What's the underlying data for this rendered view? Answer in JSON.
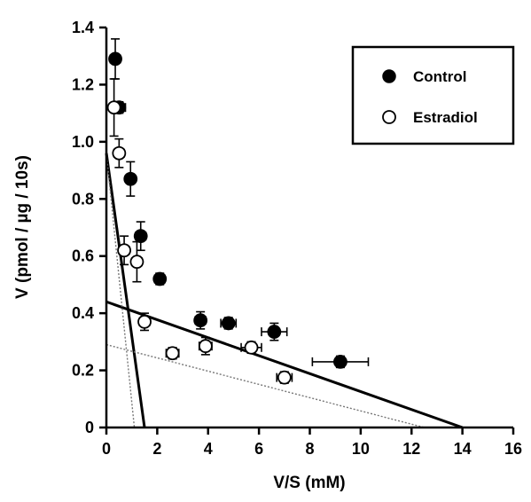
{
  "chart_data": {
    "type": "scatter",
    "title": "",
    "xlabel": "V/S (mM)",
    "ylabel": "V (pmol / µg / 10s)",
    "xlim": [
      0,
      16
    ],
    "ylim": [
      0,
      1.4
    ],
    "x_ticks": [
      0,
      2,
      4,
      6,
      8,
      10,
      12,
      14,
      16
    ],
    "y_ticks": [
      0,
      0.2,
      0.4,
      0.6,
      0.8,
      1.0,
      1.2,
      1.4
    ],
    "x_tick_labels": [
      "0",
      "2",
      "4",
      "6",
      "8",
      "10",
      "12",
      "14",
      "16"
    ],
    "y_tick_labels": [
      "0",
      "0.2",
      "0.4",
      "0.6",
      "0.8",
      "1.0",
      "1.2",
      "1.4"
    ],
    "legend_position": "top-right",
    "series": [
      {
        "name": "Control",
        "marker": "filled-circle",
        "color": "#000000",
        "points": [
          {
            "x": 0.35,
            "y": 1.29,
            "xerr": 0.2,
            "yerr": 0.07
          },
          {
            "x": 0.5,
            "y": 1.12,
            "xerr": 0.25,
            "yerr": 0.02
          },
          {
            "x": 0.95,
            "y": 0.87,
            "xerr": 0.15,
            "yerr": 0.06
          },
          {
            "x": 1.35,
            "y": 0.67,
            "xerr": 0.2,
            "yerr": 0.05
          },
          {
            "x": 2.1,
            "y": 0.52,
            "xerr": 0.2,
            "yerr": 0.02
          },
          {
            "x": 3.7,
            "y": 0.375,
            "xerr": 0.2,
            "yerr": 0.03
          },
          {
            "x": 4.8,
            "y": 0.365,
            "xerr": 0.3,
            "yerr": 0.02
          },
          {
            "x": 6.6,
            "y": 0.335,
            "xerr": 0.5,
            "yerr": 0.03
          },
          {
            "x": 9.2,
            "y": 0.23,
            "xerr": 1.1,
            "yerr": 0.02
          }
        ],
        "fits": [
          {
            "style": "solid",
            "x0": 0,
            "y0": 0.96,
            "x1": 1.5,
            "y1": 0
          },
          {
            "style": "solid",
            "x0": 0,
            "y0": 0.44,
            "x1": 14,
            "y1": 0
          }
        ]
      },
      {
        "name": "Estradiol",
        "marker": "open-circle",
        "color": "#000000",
        "points": [
          {
            "x": 0.3,
            "y": 1.12,
            "xerr": 0.15,
            "yerr": 0.1
          },
          {
            "x": 0.5,
            "y": 0.96,
            "xerr": 0.2,
            "yerr": 0.05
          },
          {
            "x": 0.7,
            "y": 0.62,
            "xerr": 0.2,
            "yerr": 0.05
          },
          {
            "x": 1.2,
            "y": 0.58,
            "xerr": 0.2,
            "yerr": 0.07
          },
          {
            "x": 1.5,
            "y": 0.37,
            "xerr": 0.2,
            "yerr": 0.03
          },
          {
            "x": 2.6,
            "y": 0.26,
            "xerr": 0.25,
            "yerr": 0.02
          },
          {
            "x": 3.9,
            "y": 0.285,
            "xerr": 0.25,
            "yerr": 0.03
          },
          {
            "x": 5.7,
            "y": 0.28,
            "xerr": 0.4,
            "yerr": 0.02
          },
          {
            "x": 7.0,
            "y": 0.175,
            "xerr": 0.3,
            "yerr": 0.02
          }
        ],
        "fits": [
          {
            "style": "dotted",
            "x0": 0,
            "y0": 0.96,
            "x1": 1.1,
            "y1": 0
          },
          {
            "style": "dotted",
            "x0": 0,
            "y0": 0.29,
            "x1": 12.5,
            "y1": 0
          }
        ]
      }
    ]
  }
}
